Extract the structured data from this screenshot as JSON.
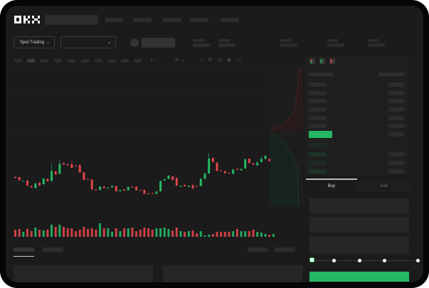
{
  "header": {
    "logo": "OKX"
  },
  "toolbar": {
    "market_type": "Spot Trading"
  },
  "trade": {
    "tabs": [
      "Buy",
      "Sell"
    ],
    "slider_level": 0
  },
  "colors": {
    "up": "#25b864",
    "down": "#e0464b",
    "background": "#1b1b1b",
    "accent": "#25b864"
  },
  "icons": [
    "chevron-down-icon",
    "indicator-icon",
    "draw-icon",
    "settings-icon",
    "fullscreen-icon",
    "orderbook-both-icon",
    "orderbook-bids-icon",
    "orderbook-asks-icon"
  ],
  "chart_data": {
    "type": "candlestick",
    "candles": [
      [
        118,
        120,
        116,
        115
      ],
      [
        118,
        119,
        108,
        109
      ],
      [
        107,
        108,
        106,
        108
      ],
      [
        108,
        110,
        92,
        94
      ],
      [
        93,
        94,
        88,
        89
      ],
      [
        87,
        102,
        86,
        100
      ],
      [
        102,
        103,
        93,
        94
      ],
      [
        98,
        114,
        97,
        114
      ],
      [
        113,
        114,
        105,
        106
      ],
      [
        107,
        157,
        106,
        135
      ],
      [
        134,
        136,
        124,
        125
      ],
      [
        127,
        167,
        125,
        155
      ],
      [
        157,
        159,
        153,
        153
      ],
      [
        154,
        155,
        150,
        151
      ],
      [
        154,
        165,
        143,
        144
      ],
      [
        151,
        152,
        148,
        149
      ],
      [
        152,
        153,
        130,
        131
      ],
      [
        131,
        132,
        109,
        110
      ],
      [
        113,
        114,
        110,
        111
      ],
      [
        111,
        112,
        82,
        83
      ],
      [
        83,
        84,
        80,
        82
      ],
      [
        82,
        93,
        80,
        91
      ],
      [
        91,
        92,
        86,
        87
      ],
      [
        87,
        89,
        86,
        88
      ],
      [
        89,
        94,
        88,
        93
      ],
      [
        93,
        94,
        77,
        78
      ],
      [
        78,
        82,
        77,
        81
      ],
      [
        83,
        84,
        79,
        80
      ],
      [
        81,
        91,
        80,
        90
      ],
      [
        91,
        92,
        88,
        89
      ],
      [
        91,
        92,
        80,
        81
      ],
      [
        81,
        82,
        79,
        80
      ],
      [
        82,
        83,
        70,
        71
      ],
      [
        72,
        73,
        70,
        71
      ],
      [
        73,
        74,
        70,
        71
      ],
      [
        71,
        78,
        69,
        77
      ],
      [
        78,
        108,
        77,
        107
      ],
      [
        108,
        113,
        107,
        112
      ],
      [
        113,
        124,
        112,
        122
      ],
      [
        120,
        121,
        109,
        110
      ],
      [
        116,
        117,
        93,
        94
      ],
      [
        92,
        95,
        90,
        93
      ],
      [
        96,
        97,
        92,
        92
      ],
      [
        90,
        95,
        89,
        93
      ],
      [
        95,
        98,
        85,
        86
      ],
      [
        93,
        94,
        90,
        91
      ],
      [
        93,
        114,
        92,
        113
      ],
      [
        113,
        129,
        112,
        128
      ],
      [
        128,
        185,
        127,
        170
      ],
      [
        172,
        173,
        159,
        160
      ],
      [
        159,
        160,
        134,
        135
      ],
      [
        137,
        138,
        134,
        135
      ],
      [
        135,
        136,
        128,
        129
      ],
      [
        130,
        131,
        128,
        129
      ],
      [
        127,
        141,
        126,
        139
      ],
      [
        141,
        145,
        138,
        139
      ],
      [
        137,
        143,
        136,
        141
      ],
      [
        142,
        171,
        141,
        168
      ],
      [
        170,
        171,
        156,
        157
      ],
      [
        157,
        158,
        153,
        153
      ],
      [
        151,
        162,
        150,
        159
      ],
      [
        160,
        176,
        159,
        169
      ],
      [
        169,
        179,
        168,
        178
      ],
      [
        169,
        170,
        161,
        163
      ],
      [
        161,
        171,
        160,
        167
      ]
    ],
    "volume": [
      10,
      11,
      7,
      11,
      8,
      13,
      10,
      9,
      10,
      17,
      14,
      17,
      14,
      12,
      12,
      8,
      10,
      14,
      11,
      12,
      10,
      19,
      12,
      12,
      7,
      12,
      8,
      12,
      12,
      13,
      8,
      10,
      13,
      12,
      10,
      12,
      12,
      13,
      11,
      9,
      13,
      8,
      7,
      8,
      9,
      5,
      8,
      2,
      3,
      4,
      7,
      7,
      7,
      7,
      8,
      11,
      8,
      8,
      8,
      10,
      7,
      6,
      4,
      3,
      4
    ],
    "grid": false
  }
}
